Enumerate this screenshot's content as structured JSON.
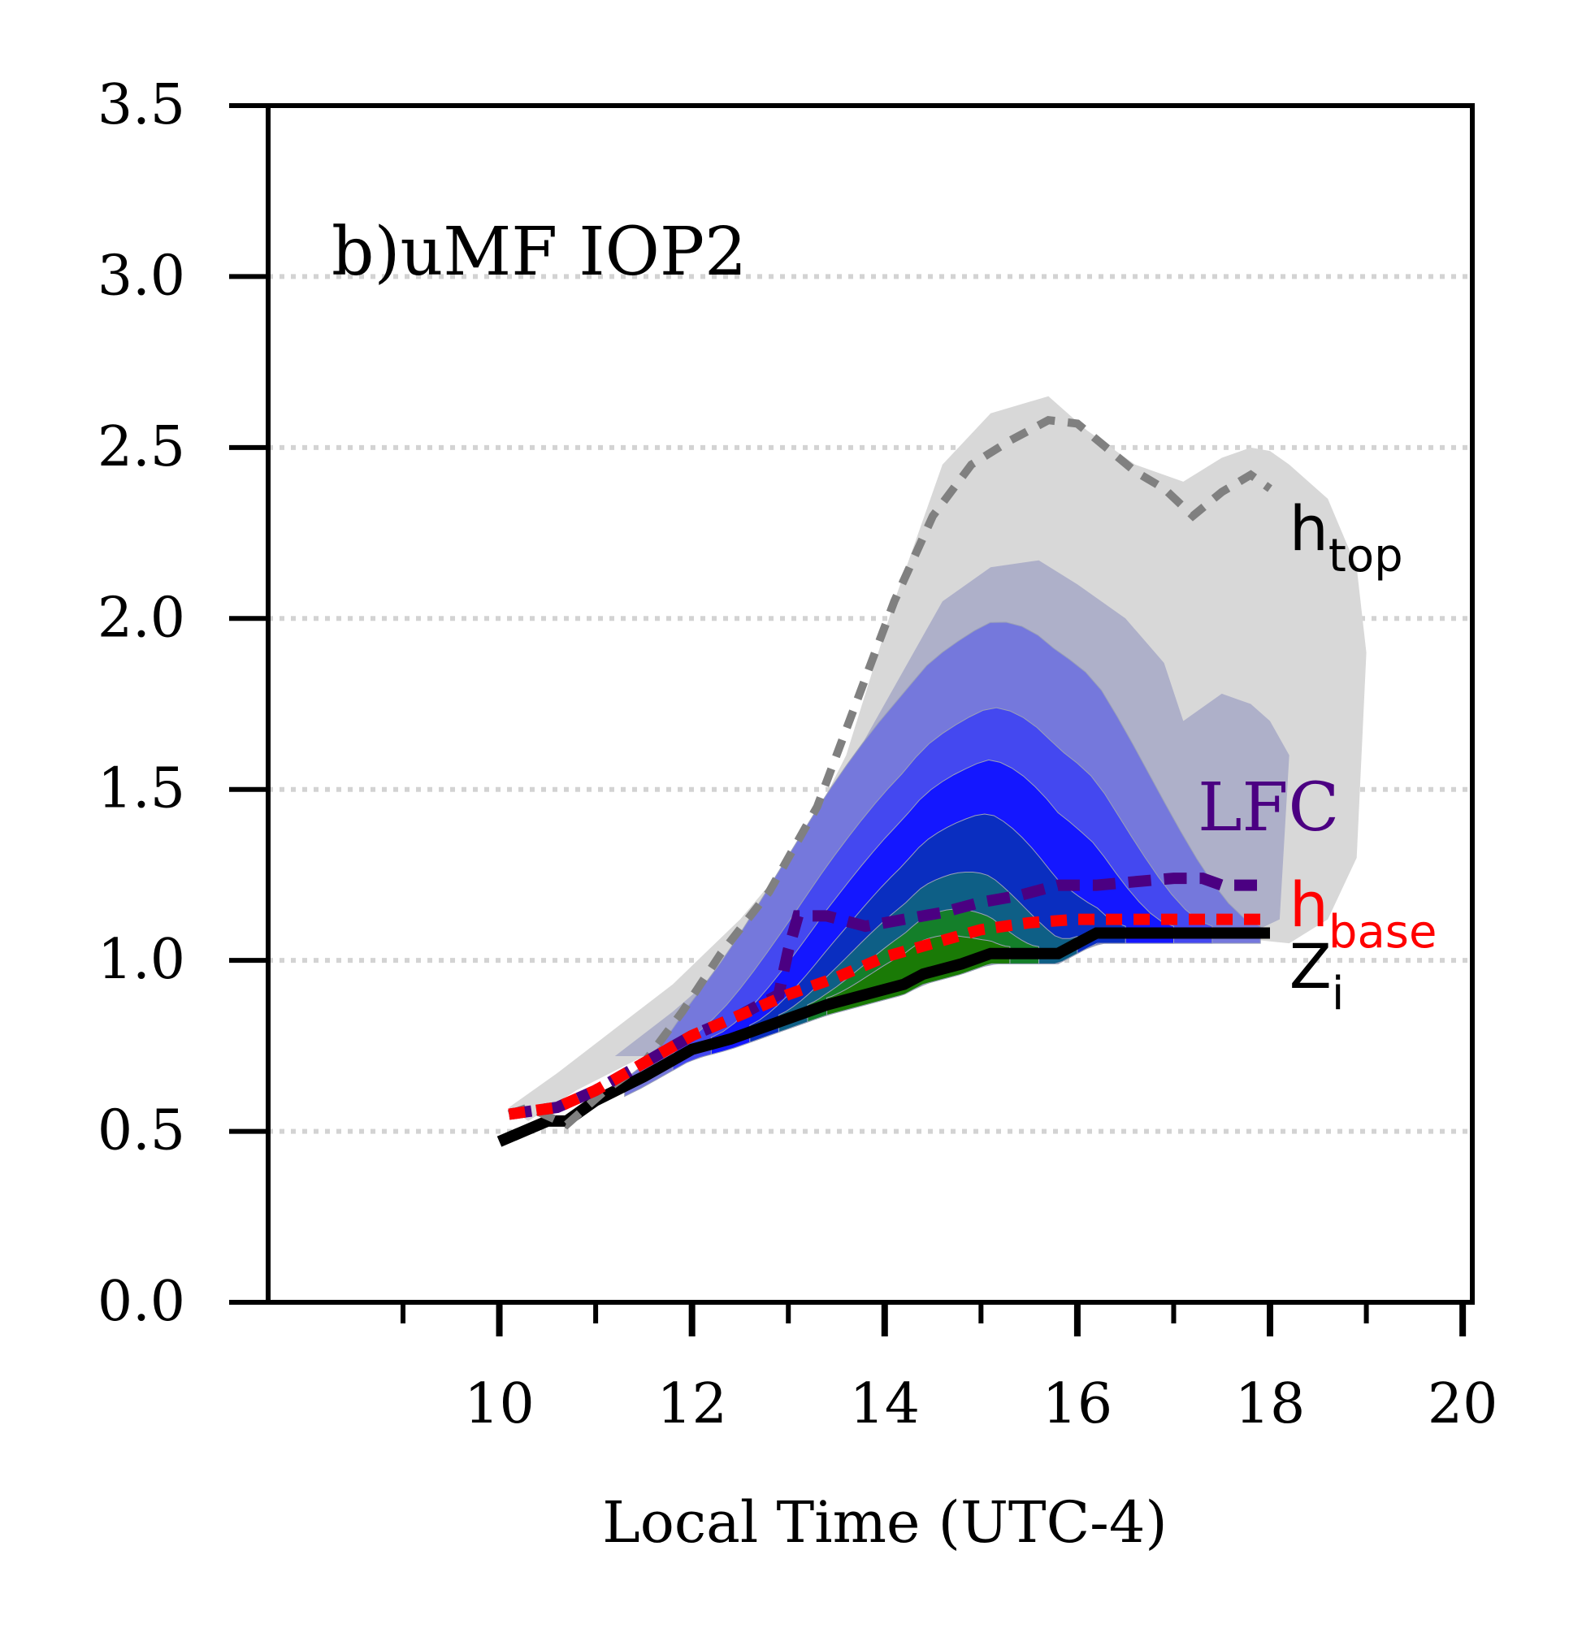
{
  "chart_data": {
    "type": "line",
    "panel_label": "b)uMF IOP2",
    "xlabel": "Local Time (UTC-4)",
    "ylabel": "",
    "xlim": [
      7.6,
      20.1
    ],
    "ylim": [
      0,
      3.5
    ],
    "x_ticks": [
      10,
      12,
      14,
      16,
      18,
      20
    ],
    "x_minor_ticks": [
      9,
      11,
      13,
      15,
      17,
      19
    ],
    "y_ticks": [
      0.0,
      0.5,
      1.0,
      1.5,
      2.0,
      2.5,
      3.0,
      3.5
    ],
    "y_tick_labels": [
      "0.0",
      "0.5",
      "1.0",
      "1.5",
      "2.0",
      "2.5",
      "3.0",
      "3.5"
    ],
    "grid": "horizontal dotted",
    "colors": {
      "shade_outer": "#d8d8d8",
      "shade_levels": [
        "#aeb0c9",
        "#7578dc",
        "#4448f0",
        "#1417ff",
        "#0a2ec0",
        "#0e5f86",
        "#147f2a",
        "#1a7a06"
      ],
      "htop": "#808080",
      "lfc": "#4b0082",
      "hbase": "#ff0000",
      "zi": "#000000"
    },
    "contour_envelopes": [
      {
        "x": [
          10.1,
          10.6,
          11.2,
          11.8,
          12.5,
          13.1,
          13.6,
          14.1,
          14.6,
          15.1,
          15.7,
          16.1,
          16.6,
          16.9,
          17.1,
          17.5,
          17.8,
          18.0,
          18.2,
          18.6,
          18.9,
          19.0,
          18.9,
          18.6,
          18.2,
          17.5,
          16.5,
          15.5,
          14.5,
          13.5,
          12.5,
          11.5,
          10.8,
          10.3
        ],
        "y_top": [
          0.57,
          0.67,
          0.8,
          0.93,
          1.12,
          1.32,
          1.6,
          2.05,
          2.45,
          2.6,
          2.65,
          2.55,
          2.45,
          2.42,
          2.4,
          2.47,
          2.5,
          2.49,
          2.45,
          2.35,
          2.15,
          1.9,
          1.3,
          1.12,
          1.05,
          1.07,
          1.07,
          1.02,
          0.98,
          0.9,
          0.82,
          0.72,
          0.62,
          0.53
        ]
      },
      {
        "x": [
          11.2,
          11.8,
          12.5,
          13.1,
          13.6,
          14.1,
          14.6,
          15.1,
          15.6,
          16.0,
          16.5,
          16.9,
          17.1,
          17.5,
          17.8,
          18.0,
          18.2,
          18.1,
          17.8,
          17.5,
          16.5,
          15.5,
          14.5,
          13.5,
          12.5,
          11.5
        ],
        "y_top": [
          0.72,
          0.85,
          1.02,
          1.3,
          1.55,
          1.8,
          2.05,
          2.15,
          2.17,
          2.1,
          2.0,
          1.87,
          1.7,
          1.78,
          1.75,
          1.7,
          1.6,
          1.12,
          1.08,
          1.07,
          1.07,
          1.02,
          0.98,
          0.9,
          0.82,
          0.72
        ]
      }
    ],
    "series": [
      {
        "name": "h_top",
        "style": "dashed",
        "x": [
          10.1,
          10.3,
          10.7,
          11.1,
          11.5,
          11.9,
          12.3,
          12.8,
          13.3,
          13.7,
          14.1,
          14.5,
          14.9,
          15.3,
          15.7,
          16.0,
          16.3,
          16.6,
          16.9,
          17.2,
          17.5,
          17.8,
          18.0
        ],
        "y": [
          0.55,
          0.57,
          0.52,
          0.62,
          0.7,
          0.85,
          1.02,
          1.2,
          1.45,
          1.75,
          2.05,
          2.3,
          2.45,
          2.52,
          2.58,
          2.57,
          2.5,
          2.43,
          2.38,
          2.3,
          2.37,
          2.42,
          2.38
        ]
      },
      {
        "name": "LFC",
        "style": "dashed",
        "x": [
          10.1,
          10.6,
          11.0,
          11.5,
          12.0,
          12.5,
          12.9,
          13.0,
          13.1,
          13.4,
          13.8,
          14.2,
          14.6,
          15.0,
          15.4,
          15.8,
          16.2,
          16.6,
          17.0,
          17.3,
          17.5,
          17.9
        ],
        "y": [
          0.55,
          0.57,
          0.62,
          0.7,
          0.78,
          0.84,
          0.9,
          1.03,
          1.13,
          1.13,
          1.1,
          1.12,
          1.14,
          1.17,
          1.19,
          1.22,
          1.22,
          1.23,
          1.24,
          1.24,
          1.22,
          1.22
        ]
      },
      {
        "name": "h_base",
        "style": "dotted",
        "x": [
          10.1,
          10.6,
          11.0,
          11.5,
          12.0,
          12.5,
          13.0,
          13.5,
          14.0,
          14.5,
          15.0,
          15.5,
          16.0,
          16.5,
          17.0,
          17.5,
          18.0
        ],
        "y": [
          0.55,
          0.57,
          0.62,
          0.7,
          0.78,
          0.84,
          0.9,
          0.95,
          1.01,
          1.05,
          1.09,
          1.11,
          1.12,
          1.12,
          1.12,
          1.12,
          1.12
        ]
      },
      {
        "name": "Z_i",
        "style": "solid",
        "x": [
          10.0,
          10.5,
          10.7,
          11.0,
          11.5,
          12.0,
          12.4,
          12.8,
          13.1,
          13.4,
          13.8,
          14.2,
          14.4,
          14.8,
          15.1,
          15.4,
          15.8,
          16.0,
          16.2,
          16.6,
          17.0,
          17.4,
          17.8,
          18.0
        ],
        "y": [
          0.47,
          0.53,
          0.53,
          0.59,
          0.66,
          0.74,
          0.77,
          0.81,
          0.84,
          0.87,
          0.9,
          0.93,
          0.96,
          0.99,
          1.02,
          1.02,
          1.02,
          1.05,
          1.08,
          1.08,
          1.08,
          1.08,
          1.08,
          1.08
        ]
      }
    ],
    "annotations": [
      {
        "id": "htop",
        "text": "h",
        "sub": "top",
        "x": 18.2,
        "y": 2.2
      },
      {
        "id": "lfc",
        "text": "LFC",
        "sub": "",
        "x": 17.25,
        "y": 1.38
      },
      {
        "id": "hbase",
        "text": "h",
        "sub": "base",
        "x": 18.2,
        "y": 1.1
      },
      {
        "id": "zi",
        "text": "Z",
        "sub": "i",
        "x": 18.2,
        "y": 0.92
      }
    ]
  }
}
